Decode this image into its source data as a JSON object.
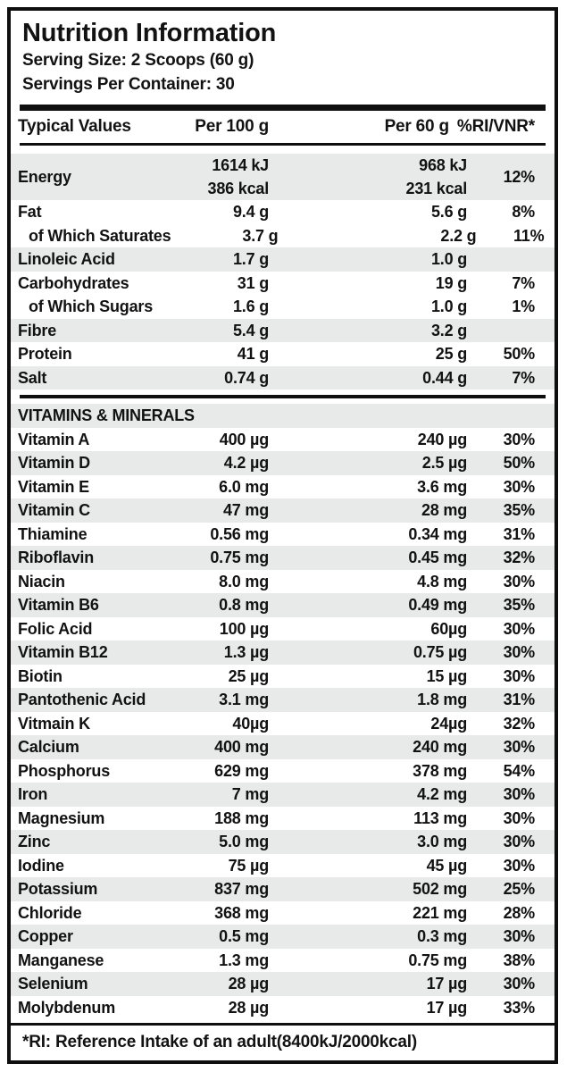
{
  "label": {
    "title": "Nutrition Information",
    "serving_size": "Serving Size: 2 Scoops (60 g)",
    "servings_per_container": "Servings Per Container: 30",
    "footnote": "*RI: Reference Intake of an adult(8400kJ/2000kcal)"
  },
  "table": {
    "headers": {
      "typical_values": "Typical Values",
      "per_100g": "Per 100 g",
      "per_60g": "Per 60 g",
      "ri_vnr": "%RI/VNR*"
    },
    "macro_rows": [
      {
        "label": "Energy",
        "indent": false,
        "shaded": true,
        "per_100g": [
          "1614 kJ",
          "386 kcal"
        ],
        "per_60g": [
          "968 kJ",
          "231 kcal"
        ],
        "ri": "12%"
      },
      {
        "label": "Fat",
        "indent": false,
        "shaded": false,
        "per_100g": "9.4 g",
        "per_60g": "5.6 g",
        "ri": "8%"
      },
      {
        "label": "of Which Saturates",
        "indent": true,
        "shaded": false,
        "per_100g": "3.7 g",
        "per_60g": "2.2 g",
        "ri": "11%"
      },
      {
        "label": "Linoleic Acid",
        "indent": false,
        "shaded": true,
        "per_100g": "1.7 g",
        "per_60g": "1.0 g",
        "ri": ""
      },
      {
        "label": "Carbohydrates",
        "indent": false,
        "shaded": false,
        "per_100g": "31 g",
        "per_60g": "19 g",
        "ri": "7%"
      },
      {
        "label": "of Which Sugars",
        "indent": true,
        "shaded": false,
        "per_100g": "1.6 g",
        "per_60g": "1.0 g",
        "ri": "1%"
      },
      {
        "label": "Fibre",
        "indent": false,
        "shaded": true,
        "per_100g": "5.4 g",
        "per_60g": "3.2 g",
        "ri": ""
      },
      {
        "label": "Protein",
        "indent": false,
        "shaded": false,
        "per_100g": "41 g",
        "per_60g": "25 g",
        "ri": "50%"
      },
      {
        "label": "Salt",
        "indent": false,
        "shaded": true,
        "per_100g": "0.74 g",
        "per_60g": "0.44 g",
        "ri": "7%"
      }
    ],
    "section_header": "VITAMINS & MINERALS",
    "vitamin_rows": [
      {
        "label": "Vitamin A",
        "per_100g": "400 µg",
        "per_60g": "240 µg",
        "ri": "30%"
      },
      {
        "label": "Vitamin D",
        "per_100g": "4.2 µg",
        "per_60g": "2.5 µg",
        "ri": "50%"
      },
      {
        "label": "Vitamin E",
        "per_100g": "6.0 mg",
        "per_60g": "3.6 mg",
        "ri": "30%"
      },
      {
        "label": "Vitamin C",
        "per_100g": "47 mg",
        "per_60g": "28 mg",
        "ri": "35%"
      },
      {
        "label": "Thiamine",
        "per_100g": "0.56 mg",
        "per_60g": "0.34 mg",
        "ri": "31%"
      },
      {
        "label": "Riboflavin",
        "per_100g": "0.75 mg",
        "per_60g": "0.45 mg",
        "ri": "32%"
      },
      {
        "label": "Niacin",
        "per_100g": "8.0 mg",
        "per_60g": "4.8 mg",
        "ri": "30%"
      },
      {
        "label": "Vitamin B6",
        "per_100g": "0.8 mg",
        "per_60g": "0.49 mg",
        "ri": "35%"
      },
      {
        "label": "Folic Acid",
        "per_100g": "100 µg",
        "per_60g": "60µg",
        "ri": "30%"
      },
      {
        "label": "Vitamin B12",
        "per_100g": "1.3 µg",
        "per_60g": "0.75 µg",
        "ri": "30%"
      },
      {
        "label": "Biotin",
        "per_100g": "25 µg",
        "per_60g": "15 µg",
        "ri": "30%"
      },
      {
        "label": "Pantothenic Acid",
        "per_100g": "3.1 mg",
        "per_60g": "1.8 mg",
        "ri": "31%"
      },
      {
        "label": "Vitmain K",
        "per_100g": "40µg",
        "per_60g": "24µg",
        "ri": "32%"
      },
      {
        "label": "Calcium",
        "per_100g": "400 mg",
        "per_60g": "240 mg",
        "ri": "30%"
      },
      {
        "label": "Phosphorus",
        "per_100g": "629 mg",
        "per_60g": "378 mg",
        "ri": "54%"
      },
      {
        "label": "Iron",
        "per_100g": "7 mg",
        "per_60g": "4.2 mg",
        "ri": "30%"
      },
      {
        "label": "Magnesium",
        "per_100g": "188 mg",
        "per_60g": "113 mg",
        "ri": "30%"
      },
      {
        "label": "Zinc",
        "per_100g": "5.0 mg",
        "per_60g": "3.0 mg",
        "ri": "30%"
      },
      {
        "label": "Iodine",
        "per_100g": "75 µg",
        "per_60g": "45 µg",
        "ri": "30%"
      },
      {
        "label": "Potassium",
        "per_100g": "837 mg",
        "per_60g": "502 mg",
        "ri": "25%"
      },
      {
        "label": "Chloride",
        "per_100g": "368 mg",
        "per_60g": "221 mg",
        "ri": "28%"
      },
      {
        "label": "Copper",
        "per_100g": "0.5 mg",
        "per_60g": "0.3 mg",
        "ri": "30%"
      },
      {
        "label": "Manganese",
        "per_100g": "1.3 mg",
        "per_60g": "0.75 mg",
        "ri": "38%"
      },
      {
        "label": "Selenium",
        "per_100g": "28 µg",
        "per_60g": "17 µg",
        "ri": "30%"
      },
      {
        "label": "Molybdenum",
        "per_100g": "28 µg",
        "per_60g": "17 µg",
        "ri": "33%"
      }
    ]
  },
  "colors": {
    "text": "#121212",
    "border": "#0f0f0f",
    "stripe": "#e8e9e9",
    "background": "#ffffff"
  }
}
